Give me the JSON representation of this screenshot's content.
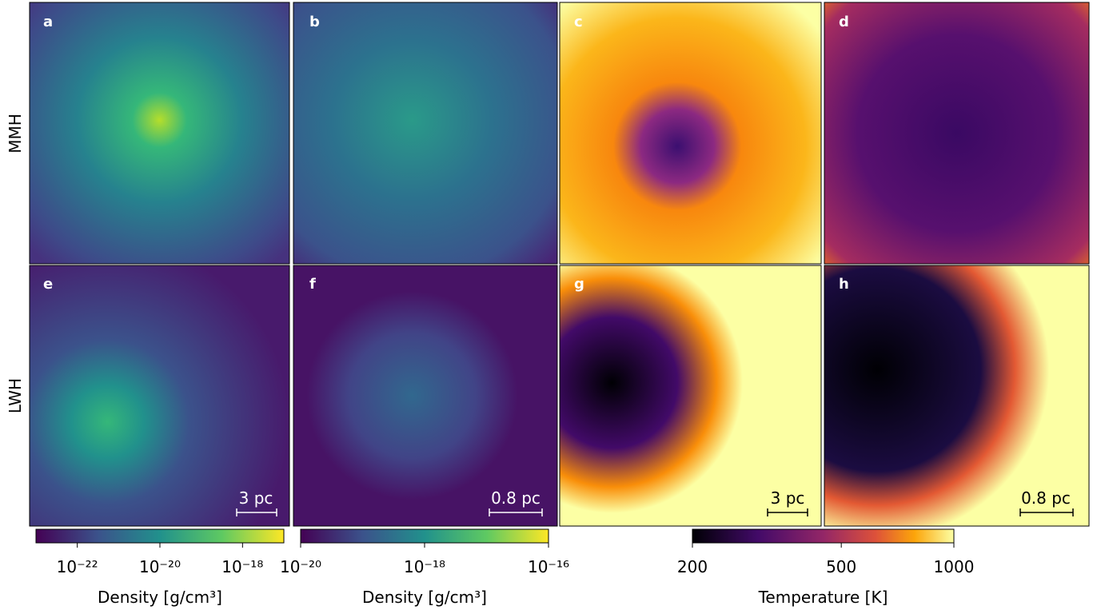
{
  "rows": [
    "MMH",
    "LWH"
  ],
  "panels": [
    {
      "label": "a"
    },
    {
      "label": "b"
    },
    {
      "label": "c"
    },
    {
      "label": "d"
    },
    {
      "label": "e",
      "scale_bar": "3 pc"
    },
    {
      "label": "f",
      "scale_bar": "0.8 pc"
    },
    {
      "label": "g",
      "scale_bar": "3 pc"
    },
    {
      "label": "h",
      "scale_bar": "0.8 pc"
    }
  ],
  "colorbars": [
    {
      "label": "Density [g/cm³]",
      "colormap": "viridis",
      "log": true,
      "lim": [
        1e-23,
        1e-17
      ],
      "ticks": [
        {
          "value": 1e-22,
          "label": "10⁻²²"
        },
        {
          "value": 1e-20,
          "label": "10⁻²⁰"
        },
        {
          "value": 1e-18,
          "label": "10⁻¹⁸"
        }
      ]
    },
    {
      "label": "Density [g/cm³]",
      "colormap": "viridis",
      "log": true,
      "lim": [
        1e-20,
        1e-16
      ],
      "ticks": [
        {
          "value": 1e-20,
          "label": "10⁻²⁰"
        },
        {
          "value": 1e-18,
          "label": "10⁻¹⁸"
        },
        {
          "value": 1e-16,
          "label": "10⁻¹⁶"
        }
      ]
    },
    {
      "label": "Temperature [K]",
      "colormap": "inferno",
      "log": true,
      "lim": [
        200,
        1000
      ],
      "ticks": [
        200,
        500,
        1000
      ]
    }
  ]
}
